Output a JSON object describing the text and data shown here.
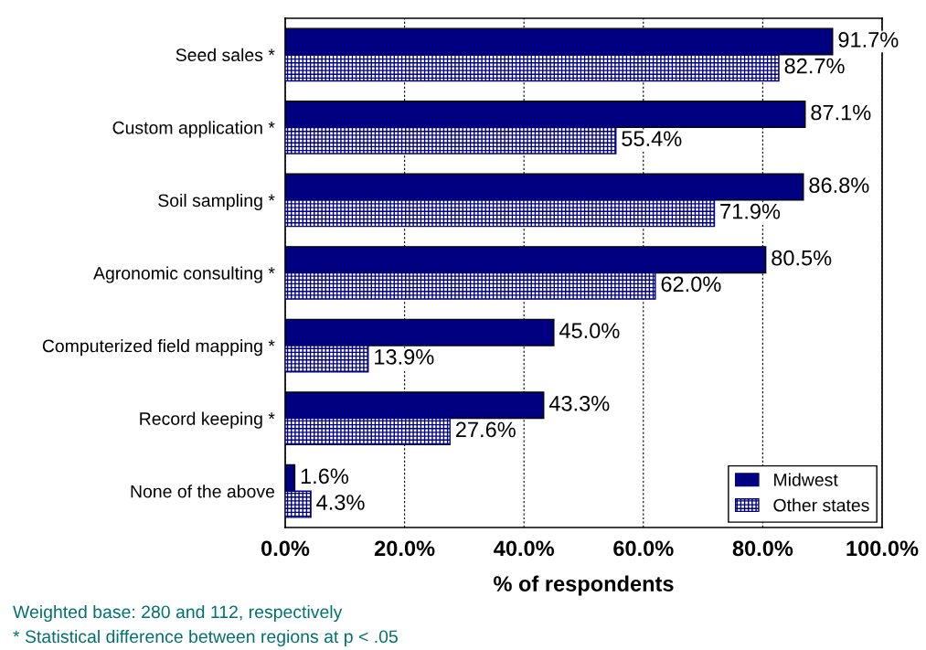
{
  "chart_data": {
    "type": "bar",
    "orientation": "horizontal",
    "xlabel": "% of respondents",
    "categories": [
      "Seed sales *",
      "Custom application *",
      "Soil sampling *",
      "Agronomic consulting *",
      "Computerized field mapping *",
      "Record keeping *",
      "None of the above"
    ],
    "series": [
      {
        "name": "Midwest",
        "color": "#000080",
        "values": [
          91.7,
          87.1,
          86.8,
          80.5,
          45.0,
          43.3,
          1.6
        ],
        "value_labels": [
          "91.7%",
          "87.1%",
          "86.8%",
          "80.5%",
          "45.0%",
          "43.3%",
          "1.6%"
        ]
      },
      {
        "name": "Other states",
        "color": "#000080",
        "values": [
          82.7,
          55.4,
          71.9,
          62.0,
          13.9,
          27.6,
          4.3
        ],
        "value_labels": [
          "82.7%",
          "55.4%",
          "71.9%",
          "62.0%",
          "13.9%",
          "27.6%",
          "4.3%"
        ]
      }
    ],
    "xlim": [
      0,
      100
    ],
    "xticks": [
      {
        "value": 0,
        "label": "0.0%"
      },
      {
        "value": 20,
        "label": "20.0%"
      },
      {
        "value": 40,
        "label": "40.0%"
      },
      {
        "value": 60,
        "label": "60.0%"
      },
      {
        "value": 80,
        "label": "80.0%"
      },
      {
        "value": 100,
        "label": "100.0%"
      }
    ],
    "grid": "x",
    "legend": "bottom right",
    "annotations": [
      "Weighted base: 280 and 112, respectively",
      "* Statistical difference between regions at p < .05"
    ]
  }
}
